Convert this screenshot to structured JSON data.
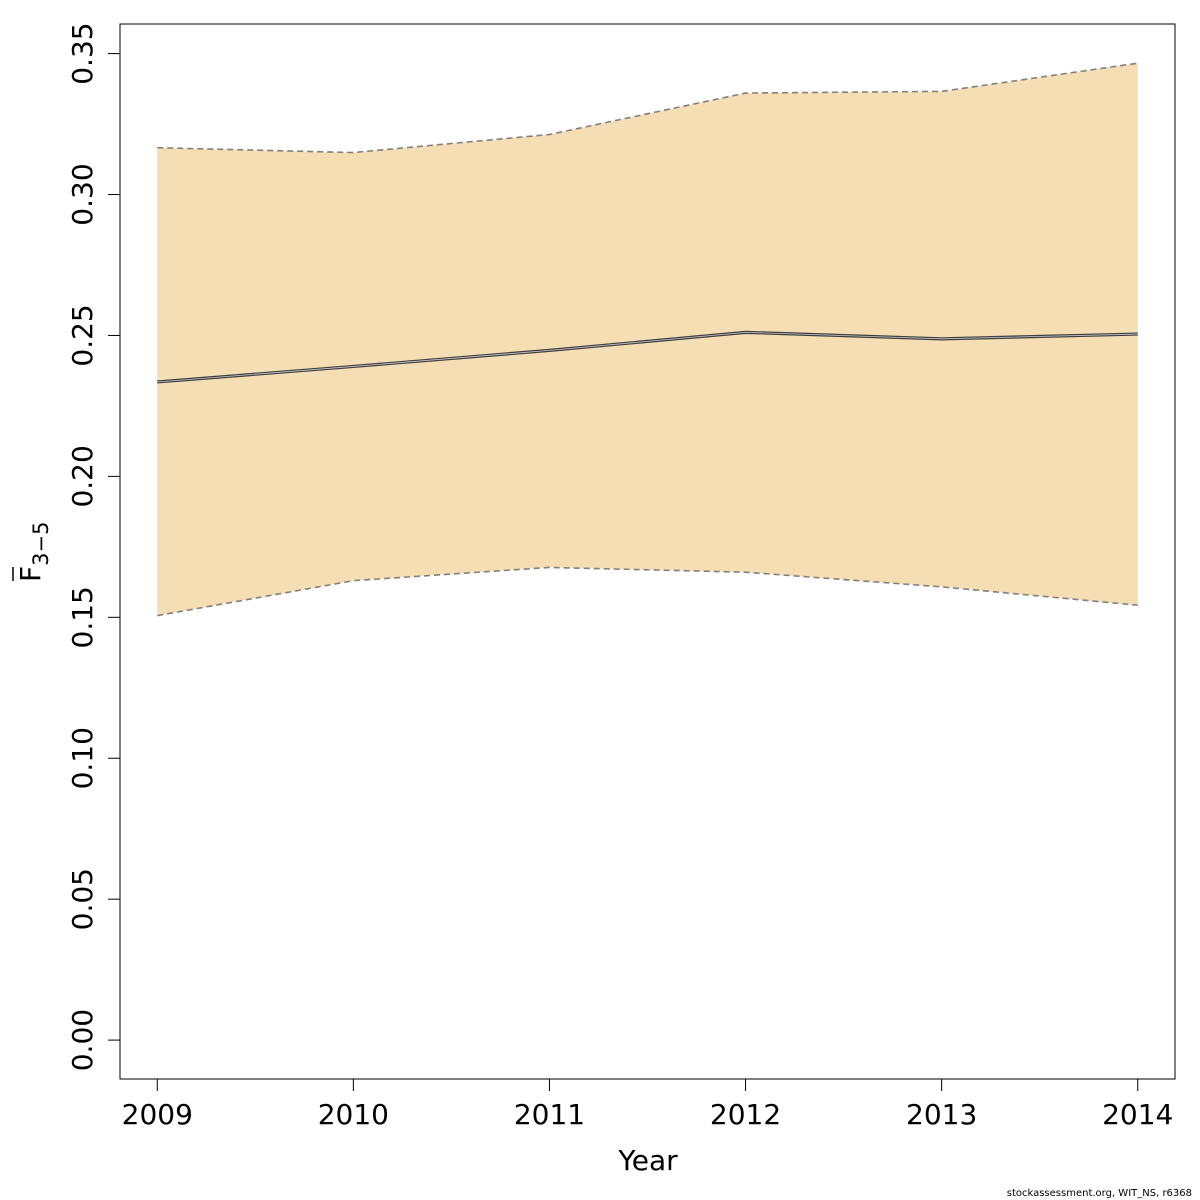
{
  "chart_data": {
    "type": "line",
    "xlabel": "Year",
    "ylabel": {
      "main": "F",
      "subscript": "3−5"
    },
    "x": [
      2009,
      2010,
      2011,
      2012,
      2013,
      2014
    ],
    "series": [
      {
        "values": [
          0.2335,
          0.239,
          0.2447,
          0.2511,
          0.2488,
          0.2505
        ]
      }
    ],
    "band": {
      "upper": [
        0.3166,
        0.3149,
        0.3213,
        0.336,
        0.3366,
        0.3466
      ],
      "lower": [
        0.1506,
        0.163,
        0.1677,
        0.166,
        0.1608,
        0.1543
      ]
    },
    "xlim": [
      2008.81,
      2014.19
    ],
    "ylim": [
      -0.0138,
      0.3605
    ],
    "x_ticks": [
      "2009",
      "2010",
      "2011",
      "2012",
      "2013",
      "2014"
    ],
    "y_ticks": [
      "0.00",
      "0.05",
      "0.10",
      "0.15",
      "0.20",
      "0.25",
      "0.30",
      "0.35"
    ],
    "grid": false,
    "colors": {
      "band_fill": "#f5deb3",
      "band_edge": "#808080",
      "line": "#404040"
    }
  },
  "footer": "stockassessment.org, WIT_NS, r6368"
}
